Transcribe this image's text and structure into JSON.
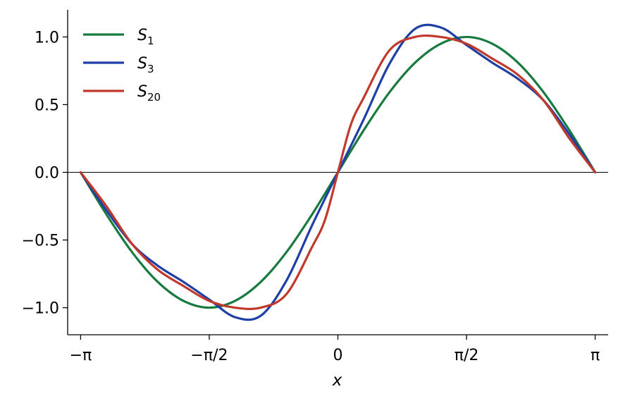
{
  "chart_data": {
    "type": "line",
    "xlabel": "x",
    "ylabel": "",
    "xlim": [
      -3.3,
      3.3
    ],
    "ylim": [
      -1.2,
      1.2
    ],
    "x_ticks": [
      {
        "value": -3.14159,
        "label": "−π"
      },
      {
        "value": -1.5708,
        "label": "−π/2"
      },
      {
        "value": 0,
        "label": "0"
      },
      {
        "value": 1.5708,
        "label": "π/2"
      },
      {
        "value": 3.14159,
        "label": "π"
      }
    ],
    "y_ticks": [
      {
        "value": 1.0,
        "label": "1.0"
      },
      {
        "value": 0.5,
        "label": "0.5"
      },
      {
        "value": 0.0,
        "label": "0.0"
      },
      {
        "value": -0.5,
        "label": "−0.5"
      },
      {
        "value": -1.0,
        "label": "−1.0"
      }
    ],
    "reference_line_y": 0,
    "grid": false,
    "legend_position": "top-left",
    "series": [
      {
        "name": "S",
        "subscript": "1",
        "color": "#177a3f",
        "x": [
          -3.1416,
          -2.8274,
          -2.5133,
          -2.1991,
          -1.885,
          -1.5708,
          -1.2566,
          -0.9425,
          -0.6283,
          -0.3142,
          0,
          0.3142,
          0.6283,
          0.9425,
          1.2566,
          1.5708,
          1.885,
          2.1991,
          2.5133,
          2.8274,
          3.1416
        ],
        "y": [
          0,
          -0.31,
          -0.59,
          -0.81,
          -0.95,
          -1.0,
          -0.95,
          -0.81,
          -0.59,
          -0.31,
          0,
          0.31,
          0.59,
          0.81,
          0.95,
          1.0,
          0.95,
          0.81,
          0.59,
          0.31,
          0
        ]
      },
      {
        "name": "S",
        "subscript": "3",
        "color": "#1f3fa6",
        "x": [
          -3.1416,
          -2.8274,
          -2.5133,
          -2.1991,
          -1.885,
          -1.5708,
          -1.2566,
          -0.9425,
          -0.6283,
          -0.3142,
          0,
          0.3142,
          0.6283,
          0.9425,
          1.2566,
          1.5708,
          1.885,
          2.1991,
          2.5133,
          2.8274,
          3.1416
        ],
        "y": [
          0,
          -0.28,
          -0.53,
          -0.69,
          -0.81,
          -0.94,
          -1.07,
          -1.06,
          -0.8,
          -0.39,
          0,
          0.39,
          0.8,
          1.06,
          1.07,
          0.94,
          0.81,
          0.69,
          0.53,
          0.28,
          0
        ]
      },
      {
        "name": "S",
        "subscript": "20",
        "color": "#c0392b",
        "x": [
          -3.1416,
          -2.8274,
          -2.5133,
          -2.1991,
          -1.885,
          -1.5708,
          -1.2566,
          -0.9425,
          -0.6283,
          -0.3142,
          -0.1571,
          0,
          0.1571,
          0.3142,
          0.6283,
          0.9425,
          1.2566,
          1.5708,
          1.885,
          2.1991,
          2.5133,
          2.8274,
          3.1416
        ],
        "y": [
          0,
          -0.25,
          -0.53,
          -0.72,
          -0.84,
          -0.95,
          -1.0,
          -1.0,
          -0.9,
          -0.55,
          -0.35,
          0,
          0.35,
          0.55,
          0.9,
          1.0,
          1.0,
          0.95,
          0.84,
          0.72,
          0.53,
          0.25,
          0
        ]
      }
    ]
  }
}
